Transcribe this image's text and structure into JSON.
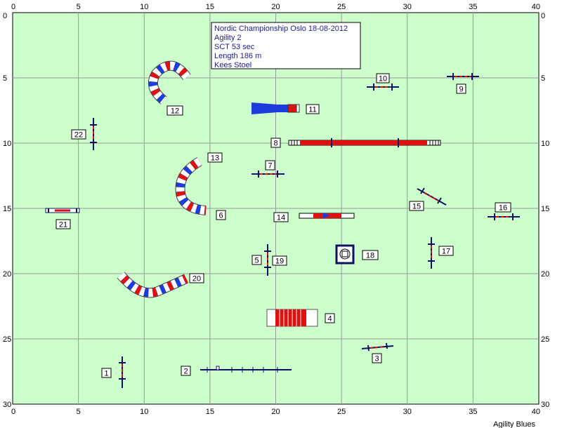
{
  "info": {
    "title": "Nordic Championship Oslo 18-08-2012",
    "lines": [
      "Agility 2",
      "SCT 53 sec",
      "Length 186 m",
      "Kees Stoel"
    ]
  },
  "footer": "Agility Blues",
  "ruler": {
    "x_ticks": [
      0,
      5,
      10,
      15,
      20,
      25,
      30,
      35,
      40
    ],
    "y_ticks": [
      0,
      5,
      10,
      15,
      20,
      25,
      30
    ],
    "x_range": [
      0,
      40
    ],
    "y_range": [
      0,
      30
    ]
  },
  "colors": {
    "field": "#ccffcc",
    "grid": "#999999",
    "blue": "#1c3cdc",
    "red": "#e01010",
    "dark": "#101060"
  },
  "obstacles": [
    {
      "num": "1",
      "type": "jump"
    },
    {
      "num": "2",
      "type": "dogwalk"
    },
    {
      "num": "3",
      "type": "jump"
    },
    {
      "num": "4",
      "type": "tire-tunnel"
    },
    {
      "num": "5",
      "type": "jump"
    },
    {
      "num": "6",
      "type": "tunnel"
    },
    {
      "num": "7",
      "type": "jump"
    },
    {
      "num": "8",
      "type": "dogwalk"
    },
    {
      "num": "9",
      "type": "jump"
    },
    {
      "num": "10",
      "type": "jump"
    },
    {
      "num": "11",
      "type": "chute"
    },
    {
      "num": "12",
      "type": "tunnel"
    },
    {
      "num": "13",
      "type": "tunnel"
    },
    {
      "num": "14",
      "type": "seesaw"
    },
    {
      "num": "15",
      "type": "jump"
    },
    {
      "num": "16",
      "type": "jump"
    },
    {
      "num": "17",
      "type": "jump"
    },
    {
      "num": "18",
      "type": "table"
    },
    {
      "num": "19",
      "type": "jump"
    },
    {
      "num": "20",
      "type": "tunnel"
    },
    {
      "num": "21",
      "type": "jump"
    },
    {
      "num": "22",
      "type": "jump"
    }
  ]
}
